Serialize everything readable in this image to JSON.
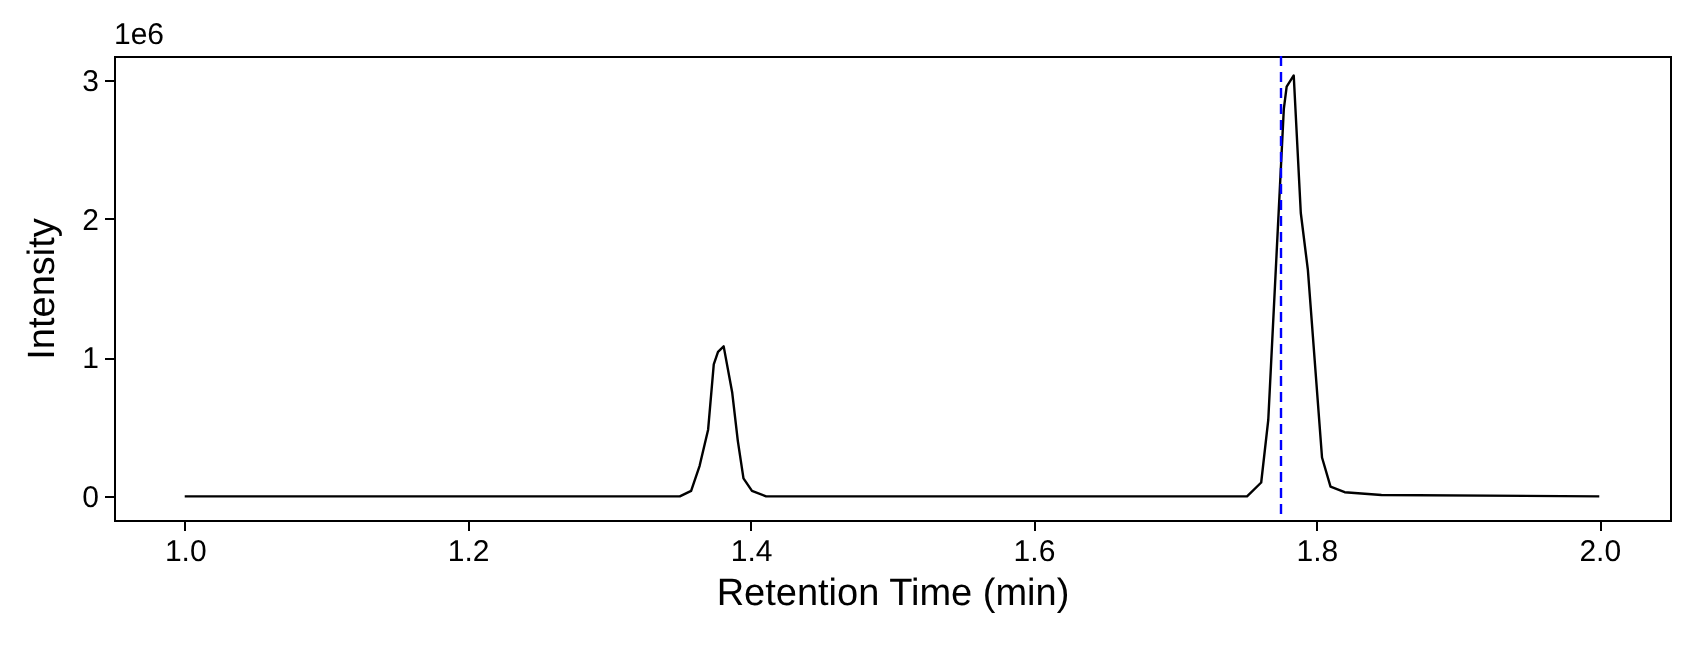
{
  "chart_data": {
    "type": "line",
    "xlabel": "Retention Time (min)",
    "ylabel": "Intensity",
    "annotations": [
      "1e6"
    ],
    "series": [
      {
        "color": "#000000",
        "x": [
          1.0,
          1.35,
          1.358,
          1.364,
          1.37,
          1.374,
          1.377,
          1.381,
          1.387,
          1.391,
          1.395,
          1.401,
          1.411,
          1.751,
          1.761,
          1.766,
          1.777,
          1.779,
          1.784,
          1.789,
          1.794,
          1.804,
          1.81,
          1.82,
          1.846,
          2.0
        ],
        "values": [
          0,
          0,
          0.04,
          0.22,
          0.48,
          0.95,
          1.04,
          1.08,
          0.75,
          0.4,
          0.13,
          0.04,
          0,
          0,
          0.1,
          0.55,
          2.79,
          2.95,
          3.03,
          2.04,
          1.63,
          0.28,
          0.07,
          0.03,
          0.01,
          0
        ]
      }
    ],
    "xlim": [
      0.95,
      2.05
    ],
    "xticks": [
      {
        "value": 1,
        "label": "1.0"
      },
      1.2,
      1.4,
      1.6,
      1.8,
      {
        "value": 2,
        "label": "2.0"
      }
    ],
    "ylim": [
      -0.17,
      3.17
    ],
    "yticks": [
      0,
      1,
      2,
      3
    ],
    "ref_lines": [
      {
        "axis": "x",
        "value": 1.775,
        "color": "#0000ff",
        "line_style": "dashed"
      }
    ],
    "grid": false
  }
}
